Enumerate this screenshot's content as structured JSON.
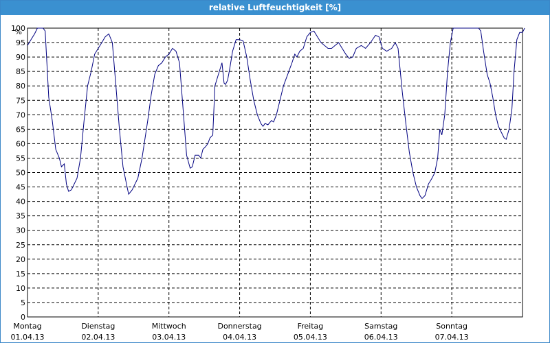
{
  "chart_data": {
    "type": "line",
    "title": "relative Luftfeuchtigkeit [%]",
    "xlabel": "",
    "ylabel": "%",
    "ylim": [
      0,
      100
    ],
    "yticks": [
      0,
      5,
      10,
      15,
      20,
      25,
      30,
      35,
      40,
      45,
      50,
      55,
      60,
      65,
      70,
      75,
      80,
      85,
      90,
      95,
      100
    ],
    "grid": true,
    "line_color": "#000080",
    "x_categories": [
      {
        "day": "Montag",
        "date": "01.04.13"
      },
      {
        "day": "Dienstag",
        "date": "02.04.13"
      },
      {
        "day": "Mittwoch",
        "date": "03.04.13"
      },
      {
        "day": "Donnerstag",
        "date": "04.04.13"
      },
      {
        "day": "Freitag",
        "date": "05.04.13"
      },
      {
        "day": "Samstag",
        "date": "06.04.13"
      },
      {
        "day": "Sonntag",
        "date": "07.04.13"
      }
    ],
    "x_unit": "days since 01.04.13 00:00",
    "series": [
      {
        "values": [
          [
            0.0,
            94
          ],
          [
            0.05,
            96
          ],
          [
            0.1,
            98
          ],
          [
            0.14,
            100
          ],
          [
            0.18,
            100
          ],
          [
            0.22,
            100
          ],
          [
            0.25,
            99
          ],
          [
            0.3,
            76
          ],
          [
            0.35,
            68
          ],
          [
            0.4,
            58
          ],
          [
            0.45,
            55
          ],
          [
            0.48,
            52
          ],
          [
            0.52,
            53
          ],
          [
            0.55,
            46
          ],
          [
            0.58,
            43.5
          ],
          [
            0.62,
            44
          ],
          [
            0.66,
            46
          ],
          [
            0.7,
            48
          ],
          [
            0.75,
            55
          ],
          [
            0.8,
            68
          ],
          [
            0.85,
            80
          ],
          [
            0.9,
            85
          ],
          [
            0.95,
            91
          ],
          [
            1.0,
            93
          ],
          [
            1.05,
            95
          ],
          [
            1.1,
            97
          ],
          [
            1.15,
            98
          ],
          [
            1.2,
            95
          ],
          [
            1.25,
            80
          ],
          [
            1.3,
            65
          ],
          [
            1.35,
            52
          ],
          [
            1.4,
            46
          ],
          [
            1.43,
            42.5
          ],
          [
            1.48,
            44
          ],
          [
            1.52,
            46
          ],
          [
            1.56,
            48
          ],
          [
            1.62,
            55
          ],
          [
            1.7,
            68
          ],
          [
            1.75,
            77
          ],
          [
            1.8,
            84
          ],
          [
            1.85,
            87
          ],
          [
            1.9,
            88
          ],
          [
            1.95,
            90
          ],
          [
            2.0,
            91
          ],
          [
            2.05,
            93
          ],
          [
            2.1,
            92
          ],
          [
            2.15,
            88
          ],
          [
            2.2,
            72
          ],
          [
            2.25,
            56
          ],
          [
            2.3,
            51.5
          ],
          [
            2.33,
            52
          ],
          [
            2.37,
            56
          ],
          [
            2.42,
            56
          ],
          [
            2.45,
            55
          ],
          [
            2.48,
            58
          ],
          [
            2.52,
            59
          ],
          [
            2.55,
            60
          ],
          [
            2.58,
            62
          ],
          [
            2.62,
            63
          ],
          [
            2.65,
            80
          ],
          [
            2.7,
            84
          ],
          [
            2.75,
            88
          ],
          [
            2.78,
            81
          ],
          [
            2.8,
            80.5
          ],
          [
            2.83,
            82
          ],
          [
            2.86,
            86
          ],
          [
            2.9,
            92
          ],
          [
            2.95,
            96
          ],
          [
            3.0,
            96
          ],
          [
            3.05,
            95.5
          ],
          [
            3.1,
            90
          ],
          [
            3.15,
            82
          ],
          [
            3.2,
            75
          ],
          [
            3.25,
            70
          ],
          [
            3.3,
            67
          ],
          [
            3.33,
            66
          ],
          [
            3.36,
            67
          ],
          [
            3.4,
            66.5
          ],
          [
            3.45,
            68
          ],
          [
            3.48,
            67.5
          ],
          [
            3.52,
            70
          ],
          [
            3.57,
            75
          ],
          [
            3.62,
            80
          ],
          [
            3.68,
            84
          ],
          [
            3.74,
            88
          ],
          [
            3.78,
            91
          ],
          [
            3.81,
            90
          ],
          [
            3.85,
            92
          ],
          [
            3.9,
            93
          ],
          [
            3.95,
            97
          ],
          [
            4.0,
            98.5
          ],
          [
            4.05,
            99
          ],
          [
            4.1,
            97
          ],
          [
            4.15,
            95
          ],
          [
            4.2,
            94
          ],
          [
            4.25,
            93
          ],
          [
            4.3,
            93
          ],
          [
            4.35,
            94
          ],
          [
            4.4,
            95
          ],
          [
            4.45,
            93
          ],
          [
            4.5,
            91
          ],
          [
            4.55,
            89.5
          ],
          [
            4.6,
            90
          ],
          [
            4.65,
            93
          ],
          [
            4.72,
            94
          ],
          [
            4.78,
            93
          ],
          [
            4.85,
            95
          ],
          [
            4.92,
            97.5
          ],
          [
            4.97,
            97
          ],
          [
            5.02,
            93
          ],
          [
            5.08,
            92
          ],
          [
            5.15,
            93
          ],
          [
            5.2,
            95
          ],
          [
            5.24,
            93
          ],
          [
            5.3,
            78
          ],
          [
            5.35,
            67
          ],
          [
            5.4,
            57
          ],
          [
            5.45,
            50
          ],
          [
            5.5,
            45
          ],
          [
            5.55,
            42
          ],
          [
            5.58,
            41
          ],
          [
            5.62,
            42
          ],
          [
            5.67,
            46
          ],
          [
            5.72,
            48
          ],
          [
            5.76,
            50
          ],
          [
            5.8,
            55
          ],
          [
            5.83,
            65
          ],
          [
            5.86,
            63
          ],
          [
            5.9,
            70
          ],
          [
            5.94,
            85
          ],
          [
            5.98,
            95
          ],
          [
            6.02,
            100
          ],
          [
            6.1,
            100
          ],
          [
            6.2,
            100
          ],
          [
            6.3,
            100
          ],
          [
            6.38,
            100
          ],
          [
            6.41,
            99
          ],
          [
            6.45,
            92
          ],
          [
            6.5,
            84
          ],
          [
            6.54,
            81
          ],
          [
            6.58,
            76
          ],
          [
            6.62,
            70
          ],
          [
            6.66,
            66
          ],
          [
            6.7,
            64
          ],
          [
            6.74,
            62
          ],
          [
            6.77,
            61.5
          ],
          [
            6.81,
            65
          ],
          [
            6.85,
            72
          ],
          [
            6.88,
            85
          ],
          [
            6.92,
            96
          ],
          [
            6.96,
            98.5
          ],
          [
            7.0,
            98.5
          ],
          [
            7.03,
            100
          ]
        ]
      }
    ]
  }
}
